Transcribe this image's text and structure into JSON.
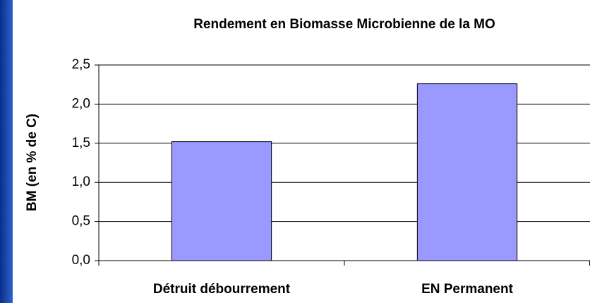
{
  "chart_data": {
    "type": "bar",
    "title": "Rendement en Biomasse Microbienne de la MO",
    "y_label": "BM (en % de C)",
    "categories": [
      "Détruit débourrement",
      "EN Permanent"
    ],
    "values": [
      1.52,
      2.26
    ],
    "color": "#9999ff",
    "ylim": [
      0,
      2.5
    ],
    "yticks": [
      {
        "value": 0,
        "label": "0,0"
      },
      {
        "value": 0.5,
        "label": "0,5"
      },
      {
        "value": 1,
        "label": "1,0"
      },
      {
        "value": 1.5,
        "label": "1,5"
      },
      {
        "value": 2,
        "label": "2,0"
      },
      {
        "value": 2.5,
        "label": "2,5"
      }
    ],
    "grid": true
  }
}
